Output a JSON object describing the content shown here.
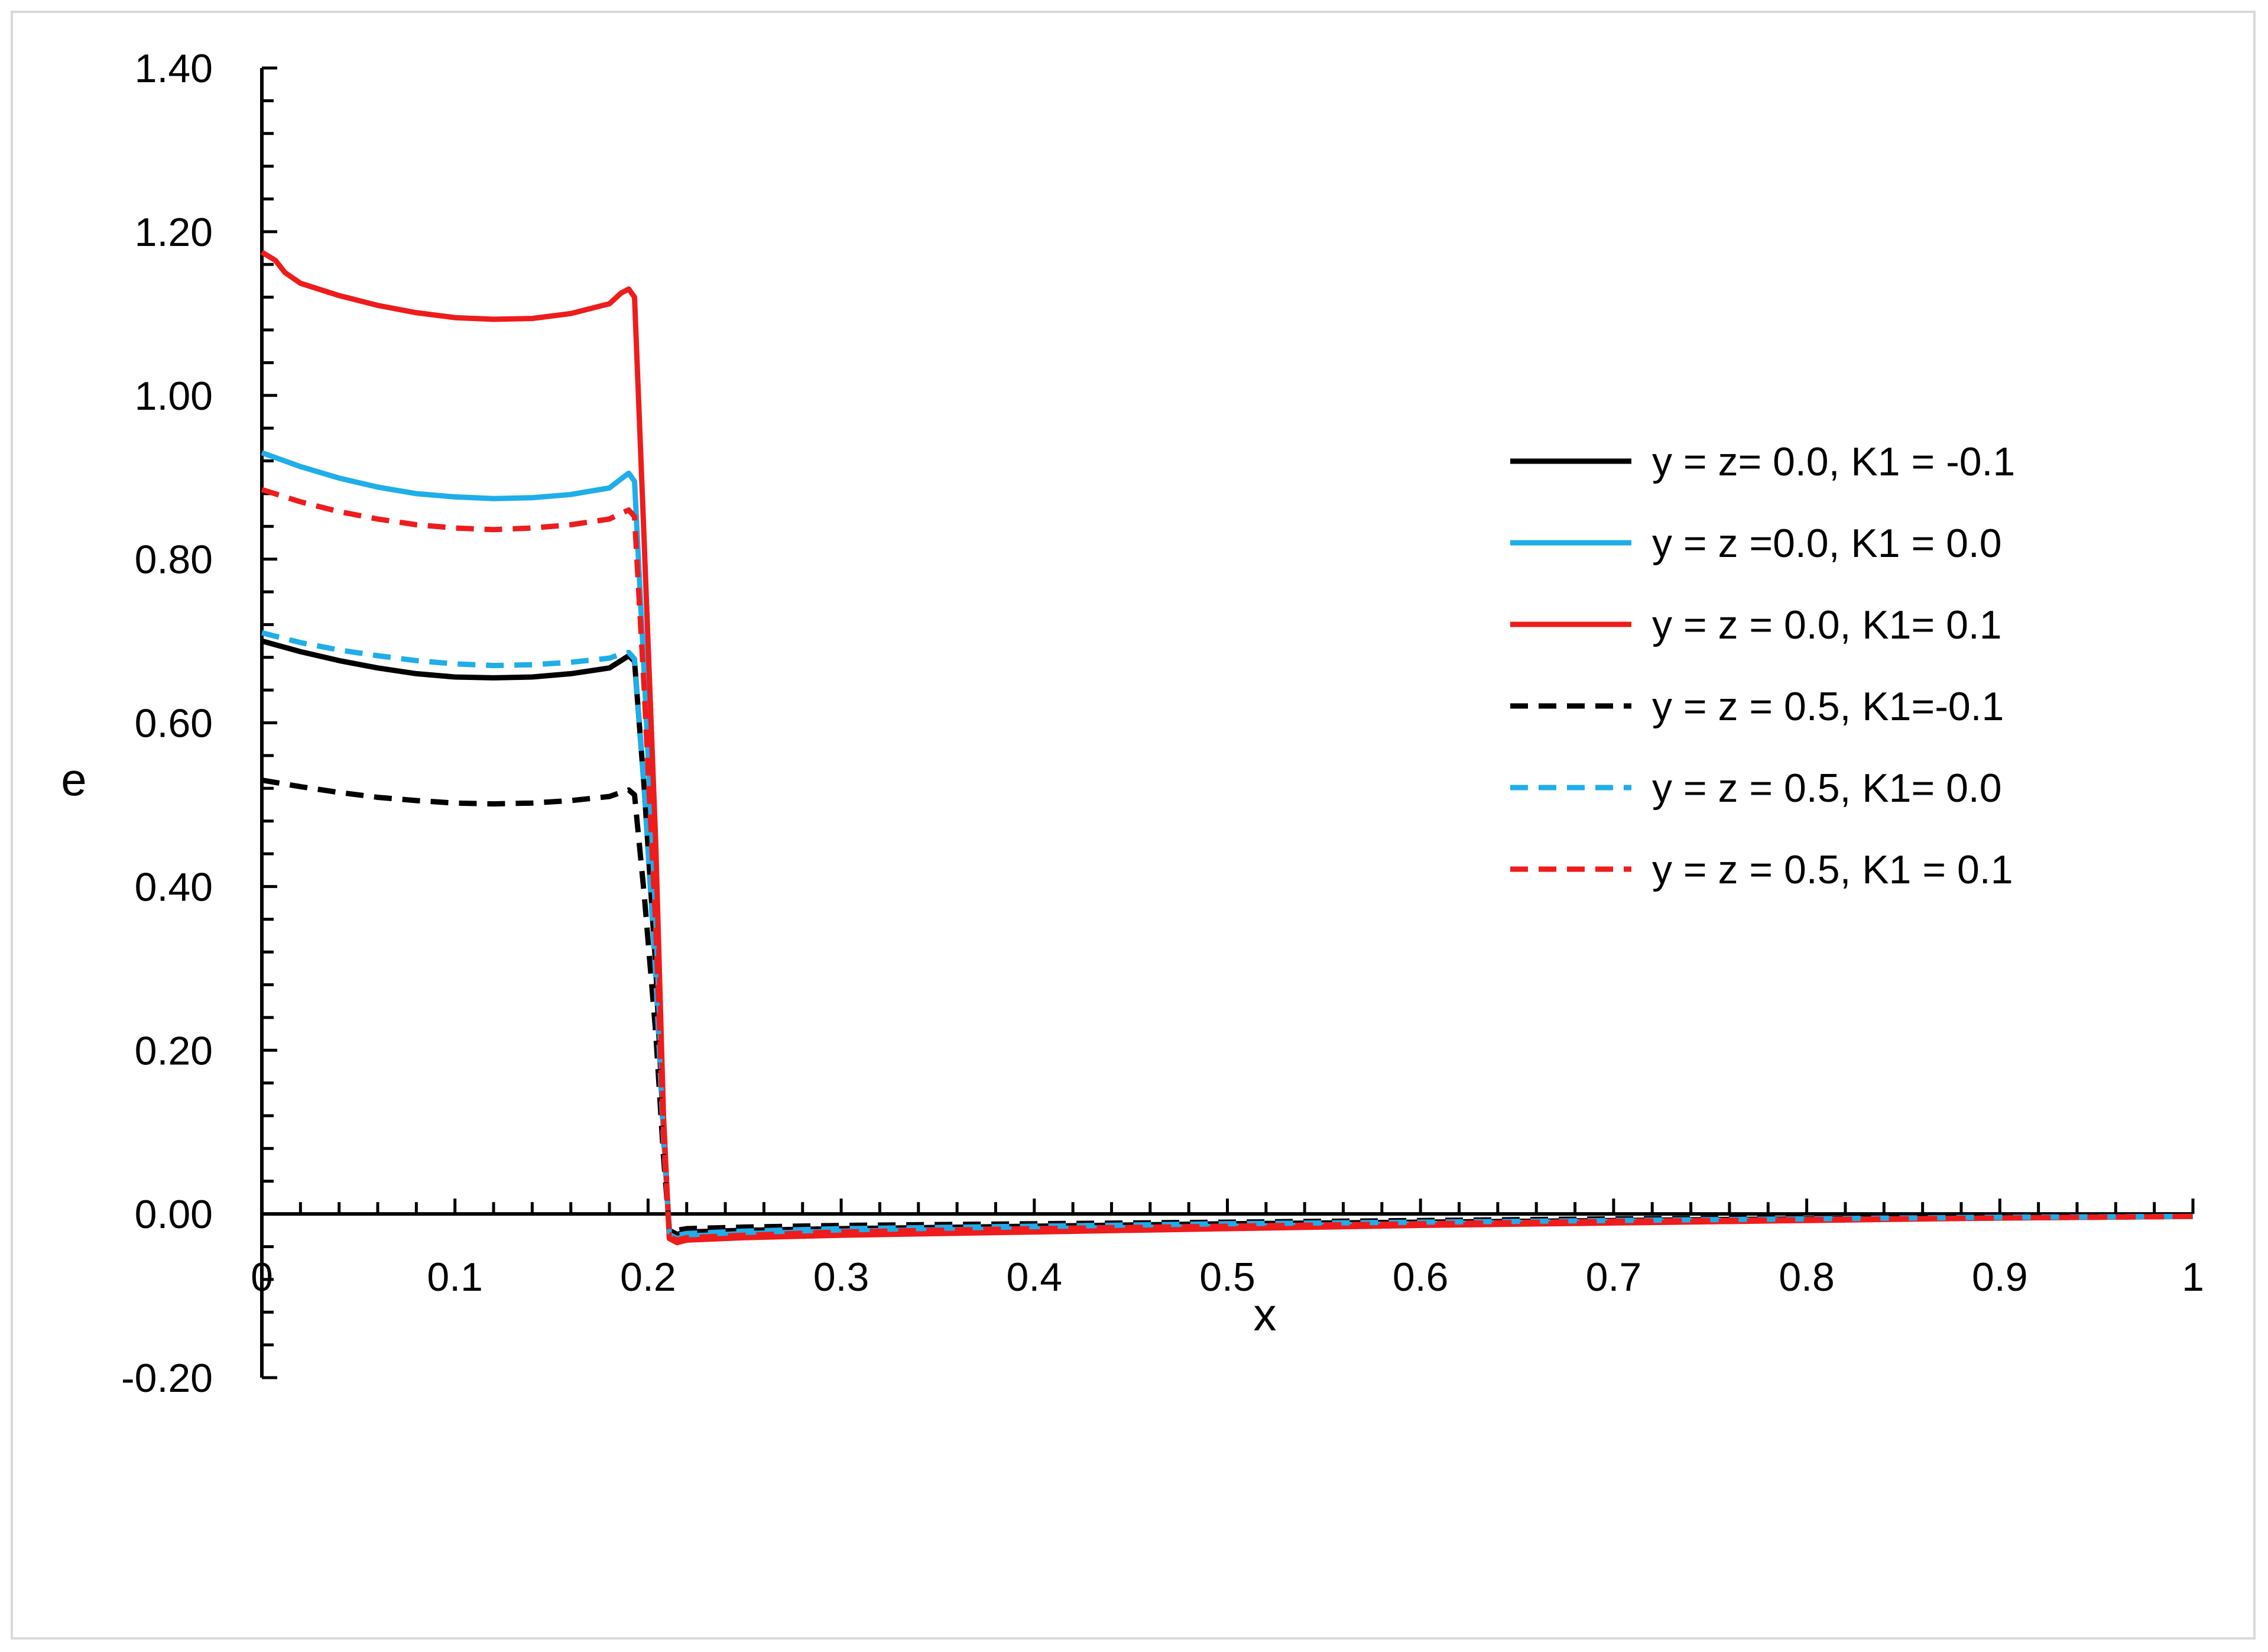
{
  "chart_data": {
    "type": "line",
    "title": "",
    "xlabel": "x",
    "ylabel": "e",
    "xlim": [
      0,
      1
    ],
    "ylim": [
      -0.2,
      1.4
    ],
    "x_ticks": [
      "0",
      "0.1",
      "0.2",
      "0.3",
      "0.4",
      "0.5",
      "0.6",
      "0.7",
      "0.8",
      "0.9",
      "1"
    ],
    "y_ticks": [
      "-0.20",
      "0.00",
      "0.20",
      "0.40",
      "0.60",
      "0.80",
      "1.00",
      "1.20",
      "1.40"
    ],
    "grid": false,
    "legend_position": "right",
    "series": [
      {
        "name": "y = z= 0.0, K1 = -0.1",
        "color": "#000000",
        "dash": "solid",
        "x": [
          0,
          0.02,
          0.04,
          0.06,
          0.08,
          0.1,
          0.12,
          0.14,
          0.16,
          0.18,
          0.186,
          0.19,
          0.193,
          0.198,
          0.204,
          0.208,
          0.211,
          0.215,
          0.22,
          0.25,
          0.3,
          0.4,
          0.5,
          0.6,
          0.7,
          0.8,
          0.9,
          1.0
        ],
        "y": [
          0.7,
          0.687,
          0.676,
          0.667,
          0.66,
          0.656,
          0.655,
          0.656,
          0.66,
          0.667,
          0.676,
          0.682,
          0.675,
          0.52,
          0.3,
          0.1,
          -0.02,
          -0.025,
          -0.022,
          -0.02,
          -0.018,
          -0.015,
          -0.012,
          -0.01,
          -0.008,
          -0.006,
          -0.004,
          -0.002
        ]
      },
      {
        "name": "y = z =0.0, K1 = 0.0",
        "color": "#1faee9",
        "dash": "solid",
        "x": [
          0,
          0.02,
          0.04,
          0.06,
          0.08,
          0.1,
          0.12,
          0.14,
          0.16,
          0.18,
          0.186,
          0.19,
          0.193,
          0.198,
          0.204,
          0.208,
          0.211,
          0.215,
          0.22,
          0.25,
          0.3,
          0.4,
          0.5,
          0.6,
          0.7,
          0.8,
          0.9,
          1.0
        ],
        "y": [
          0.93,
          0.913,
          0.899,
          0.888,
          0.88,
          0.876,
          0.874,
          0.875,
          0.879,
          0.887,
          0.898,
          0.905,
          0.895,
          0.66,
          0.36,
          0.1,
          -0.025,
          -0.03,
          -0.027,
          -0.024,
          -0.021,
          -0.018,
          -0.015,
          -0.012,
          -0.009,
          -0.007,
          -0.005,
          -0.003
        ]
      },
      {
        "name": "y = z = 0.0, K1= 0.1",
        "color": "#ee1c1c",
        "dash": "solid",
        "x": [
          0,
          0.007,
          0.012,
          0.02,
          0.04,
          0.06,
          0.08,
          0.1,
          0.12,
          0.14,
          0.16,
          0.18,
          0.186,
          0.19,
          0.193,
          0.198,
          0.204,
          0.208,
          0.211,
          0.215,
          0.22,
          0.25,
          0.3,
          0.4,
          0.5,
          0.6,
          0.7,
          0.8,
          0.9,
          1.0
        ],
        "y": [
          1.175,
          1.165,
          1.15,
          1.137,
          1.122,
          1.11,
          1.101,
          1.095,
          1.093,
          1.094,
          1.1,
          1.112,
          1.125,
          1.13,
          1.12,
          0.82,
          0.45,
          0.12,
          -0.03,
          -0.035,
          -0.032,
          -0.029,
          -0.026,
          -0.022,
          -0.018,
          -0.014,
          -0.011,
          -0.008,
          -0.005,
          -0.003
        ]
      },
      {
        "name": "y = z = 0.5, K1=-0.1",
        "color": "#000000",
        "dash": "dashed",
        "x": [
          0,
          0.02,
          0.04,
          0.06,
          0.08,
          0.1,
          0.12,
          0.14,
          0.16,
          0.18,
          0.186,
          0.19,
          0.193,
          0.198,
          0.204,
          0.208,
          0.211,
          0.215,
          0.22,
          0.25,
          0.3,
          0.4,
          0.5,
          0.6,
          0.7,
          0.8,
          0.9,
          1.0
        ],
        "y": [
          0.53,
          0.522,
          0.515,
          0.509,
          0.505,
          0.502,
          0.501,
          0.502,
          0.505,
          0.51,
          0.515,
          0.518,
          0.512,
          0.39,
          0.22,
          0.07,
          -0.018,
          -0.02,
          -0.018,
          -0.016,
          -0.014,
          -0.012,
          -0.01,
          -0.008,
          -0.006,
          -0.005,
          -0.003,
          -0.002
        ]
      },
      {
        "name": "y = z = 0.5, K1= 0.0",
        "color": "#1faee9",
        "dash": "dashed",
        "x": [
          0,
          0.02,
          0.04,
          0.06,
          0.08,
          0.1,
          0.12,
          0.14,
          0.16,
          0.18,
          0.186,
          0.19,
          0.193,
          0.198,
          0.204,
          0.208,
          0.211,
          0.215,
          0.22,
          0.25,
          0.3,
          0.4,
          0.5,
          0.6,
          0.7,
          0.8,
          0.9,
          1.0
        ],
        "y": [
          0.71,
          0.698,
          0.689,
          0.682,
          0.676,
          0.672,
          0.67,
          0.671,
          0.674,
          0.679,
          0.684,
          0.686,
          0.678,
          0.52,
          0.29,
          0.09,
          -0.022,
          -0.026,
          -0.024,
          -0.021,
          -0.018,
          -0.015,
          -0.012,
          -0.01,
          -0.008,
          -0.006,
          -0.004,
          -0.003
        ]
      },
      {
        "name": "y = z = 0.5, K1 = 0.1",
        "color": "#ee1c1c",
        "dash": "dashed",
        "x": [
          0,
          0.02,
          0.04,
          0.06,
          0.08,
          0.1,
          0.12,
          0.14,
          0.16,
          0.18,
          0.186,
          0.19,
          0.193,
          0.198,
          0.204,
          0.208,
          0.211,
          0.215,
          0.22,
          0.25,
          0.3,
          0.4,
          0.5,
          0.6,
          0.7,
          0.8,
          0.9,
          1.0
        ],
        "y": [
          0.885,
          0.87,
          0.858,
          0.849,
          0.842,
          0.838,
          0.836,
          0.838,
          0.842,
          0.849,
          0.856,
          0.86,
          0.852,
          0.64,
          0.35,
          0.1,
          -0.028,
          -0.032,
          -0.029,
          -0.026,
          -0.022,
          -0.018,
          -0.015,
          -0.012,
          -0.009,
          -0.007,
          -0.005,
          -0.003
        ]
      }
    ]
  }
}
